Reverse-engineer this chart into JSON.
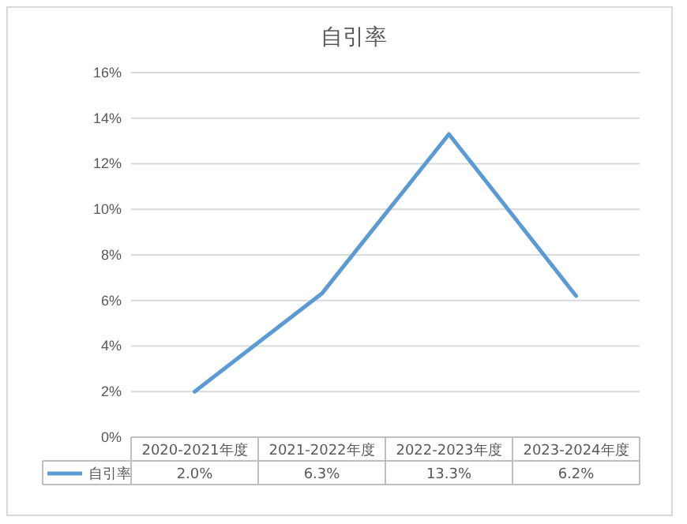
{
  "chart_data": {
    "type": "line",
    "title": "自引率",
    "categories": [
      "2020-2021年度",
      "2021-2022年度",
      "2022-2023年度",
      "2023-2024年度"
    ],
    "series": [
      {
        "name": "自引率",
        "color": "#5b9bd5",
        "values": [
          2.0,
          6.3,
          13.3,
          6.2
        ],
        "value_labels": [
          "2.0%",
          "6.3%",
          "13.3%",
          "6.2%"
        ]
      }
    ],
    "ylim": [
      0,
      16
    ],
    "yticks": [
      {
        "value": 0,
        "label": "0%"
      },
      {
        "value": 2,
        "label": "2%"
      },
      {
        "value": 4,
        "label": "4%"
      },
      {
        "value": 6,
        "label": "6%"
      },
      {
        "value": 8,
        "label": "8%"
      },
      {
        "value": 10,
        "label": "10%"
      },
      {
        "value": 12,
        "label": "12%"
      },
      {
        "value": 14,
        "label": "14%"
      },
      {
        "value": 16,
        "label": "16%"
      }
    ],
    "grid": "y",
    "legend": "bottom",
    "line_style": "solid"
  }
}
